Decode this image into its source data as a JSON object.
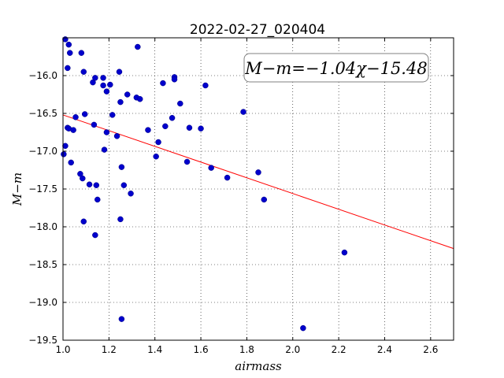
{
  "chart_data": {
    "type": "scatter",
    "title": "2022-02-27_020404",
    "xlabel": "airmass",
    "ylabel": "M−m",
    "xlim": [
      1.0,
      2.7
    ],
    "ylim": [
      -19.5,
      -15.5
    ],
    "y_inverted": false,
    "x_ticks": [
      1.0,
      1.2,
      1.4,
      1.6,
      1.8,
      2.0,
      2.2,
      2.4,
      2.6
    ],
    "x_tick_labels": [
      "1.0",
      "1.2",
      "1.4",
      "1.6",
      "1.8",
      "2.0",
      "2.2",
      "2.4",
      "2.6"
    ],
    "y_ticks": [
      -16.0,
      -16.5,
      -17.0,
      -17.5,
      -18.0,
      -18.5,
      -19.0,
      -19.5
    ],
    "y_tick_labels": [
      "−16.0",
      "−16.5",
      "−17.0",
      "−17.5",
      "−18.0",
      "−18.5",
      "−19.0",
      "−19.5"
    ],
    "grid": true,
    "point_color": "#0000cc",
    "line_color": "#ff0000",
    "fit": {
      "slope": -1.04,
      "intercept": -15.48
    },
    "annotation": "M−m=−1.04χ−15.48",
    "points": [
      {
        "x": 1.003,
        "y": -17.04
      },
      {
        "x": 1.01,
        "y": -16.93
      },
      {
        "x": 1.01,
        "y": -15.52
      },
      {
        "x": 1.02,
        "y": -15.9
      },
      {
        "x": 1.02,
        "y": -16.69
      },
      {
        "x": 1.025,
        "y": -16.7
      },
      {
        "x": 1.025,
        "y": -15.59
      },
      {
        "x": 1.03,
        "y": -15.7
      },
      {
        "x": 1.035,
        "y": -17.15
      },
      {
        "x": 1.045,
        "y": -16.72
      },
      {
        "x": 1.055,
        "y": -16.55
      },
      {
        "x": 1.075,
        "y": -17.3
      },
      {
        "x": 1.08,
        "y": -15.7
      },
      {
        "x": 1.085,
        "y": -17.36
      },
      {
        "x": 1.09,
        "y": -17.93
      },
      {
        "x": 1.09,
        "y": -15.95
      },
      {
        "x": 1.095,
        "y": -16.51
      },
      {
        "x": 1.115,
        "y": -17.44
      },
      {
        "x": 1.13,
        "y": -16.09
      },
      {
        "x": 1.135,
        "y": -16.65
      },
      {
        "x": 1.14,
        "y": -16.03
      },
      {
        "x": 1.14,
        "y": -18.11
      },
      {
        "x": 1.145,
        "y": -17.45
      },
      {
        "x": 1.15,
        "y": -17.64
      },
      {
        "x": 1.175,
        "y": -16.13
      },
      {
        "x": 1.175,
        "y": -16.03
      },
      {
        "x": 1.18,
        "y": -16.98
      },
      {
        "x": 1.19,
        "y": -16.21
      },
      {
        "x": 1.19,
        "y": -16.75
      },
      {
        "x": 1.205,
        "y": -16.12
      },
      {
        "x": 1.215,
        "y": -16.52
      },
      {
        "x": 1.235,
        "y": -16.8
      },
      {
        "x": 1.245,
        "y": -15.95
      },
      {
        "x": 1.25,
        "y": -16.35
      },
      {
        "x": 1.25,
        "y": -17.9
      },
      {
        "x": 1.255,
        "y": -17.21
      },
      {
        "x": 1.255,
        "y": -19.22
      },
      {
        "x": 1.265,
        "y": -17.45
      },
      {
        "x": 1.28,
        "y": -16.25
      },
      {
        "x": 1.295,
        "y": -17.56
      },
      {
        "x": 1.32,
        "y": -16.29
      },
      {
        "x": 1.325,
        "y": -15.62
      },
      {
        "x": 1.335,
        "y": -16.31
      },
      {
        "x": 1.37,
        "y": -16.72
      },
      {
        "x": 1.405,
        "y": -17.07
      },
      {
        "x": 1.415,
        "y": -16.88
      },
      {
        "x": 1.435,
        "y": -16.1
      },
      {
        "x": 1.445,
        "y": -16.67
      },
      {
        "x": 1.475,
        "y": -16.56
      },
      {
        "x": 1.485,
        "y": -16.02
      },
      {
        "x": 1.485,
        "y": -16.05
      },
      {
        "x": 1.51,
        "y": -16.37
      },
      {
        "x": 1.54,
        "y": -17.14
      },
      {
        "x": 1.55,
        "y": -16.69
      },
      {
        "x": 1.6,
        "y": -16.7
      },
      {
        "x": 1.62,
        "y": -16.13
      },
      {
        "x": 1.645,
        "y": -17.22
      },
      {
        "x": 1.715,
        "y": -17.35
      },
      {
        "x": 1.785,
        "y": -16.48
      },
      {
        "x": 1.85,
        "y": -17.28
      },
      {
        "x": 1.875,
        "y": -17.64
      },
      {
        "x": 2.045,
        "y": -19.34
      },
      {
        "x": 2.225,
        "y": -18.34
      }
    ]
  }
}
